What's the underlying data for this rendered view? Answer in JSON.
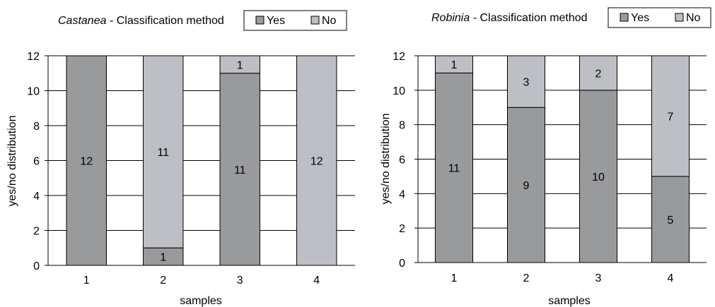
{
  "colors": {
    "yes": "#999a9c",
    "no": "#bebfc5",
    "grid": "#000000",
    "border": "#333333"
  },
  "chart_data": [
    {
      "type": "bar",
      "stacked": true,
      "title_italic": "Castanea",
      "title_rest": " - Classification method",
      "xlabel": "samples",
      "ylabel": "yes/no distribution",
      "ylim": [
        0,
        12
      ],
      "yticks": [
        0,
        2,
        4,
        6,
        8,
        10,
        12
      ],
      "grid": true,
      "legend_position": "top-right",
      "categories": [
        "1",
        "2",
        "3",
        "4"
      ],
      "series": [
        {
          "name": "Yes",
          "values": [
            12,
            1,
            11,
            0
          ]
        },
        {
          "name": "No",
          "values": [
            0,
            11,
            1,
            12
          ]
        }
      ]
    },
    {
      "type": "bar",
      "stacked": true,
      "title_italic": "Robinia",
      "title_rest": " - Classification method",
      "xlabel": "samples",
      "ylabel": "yes/no distribution",
      "ylim": [
        0,
        12
      ],
      "yticks": [
        0,
        2,
        4,
        6,
        8,
        10,
        12
      ],
      "grid": true,
      "legend_position": "top-right",
      "categories": [
        "1",
        "2",
        "3",
        "4"
      ],
      "series": [
        {
          "name": "Yes",
          "values": [
            11,
            9,
            10,
            5
          ]
        },
        {
          "name": "No",
          "values": [
            1,
            3,
            2,
            7
          ]
        }
      ]
    }
  ]
}
